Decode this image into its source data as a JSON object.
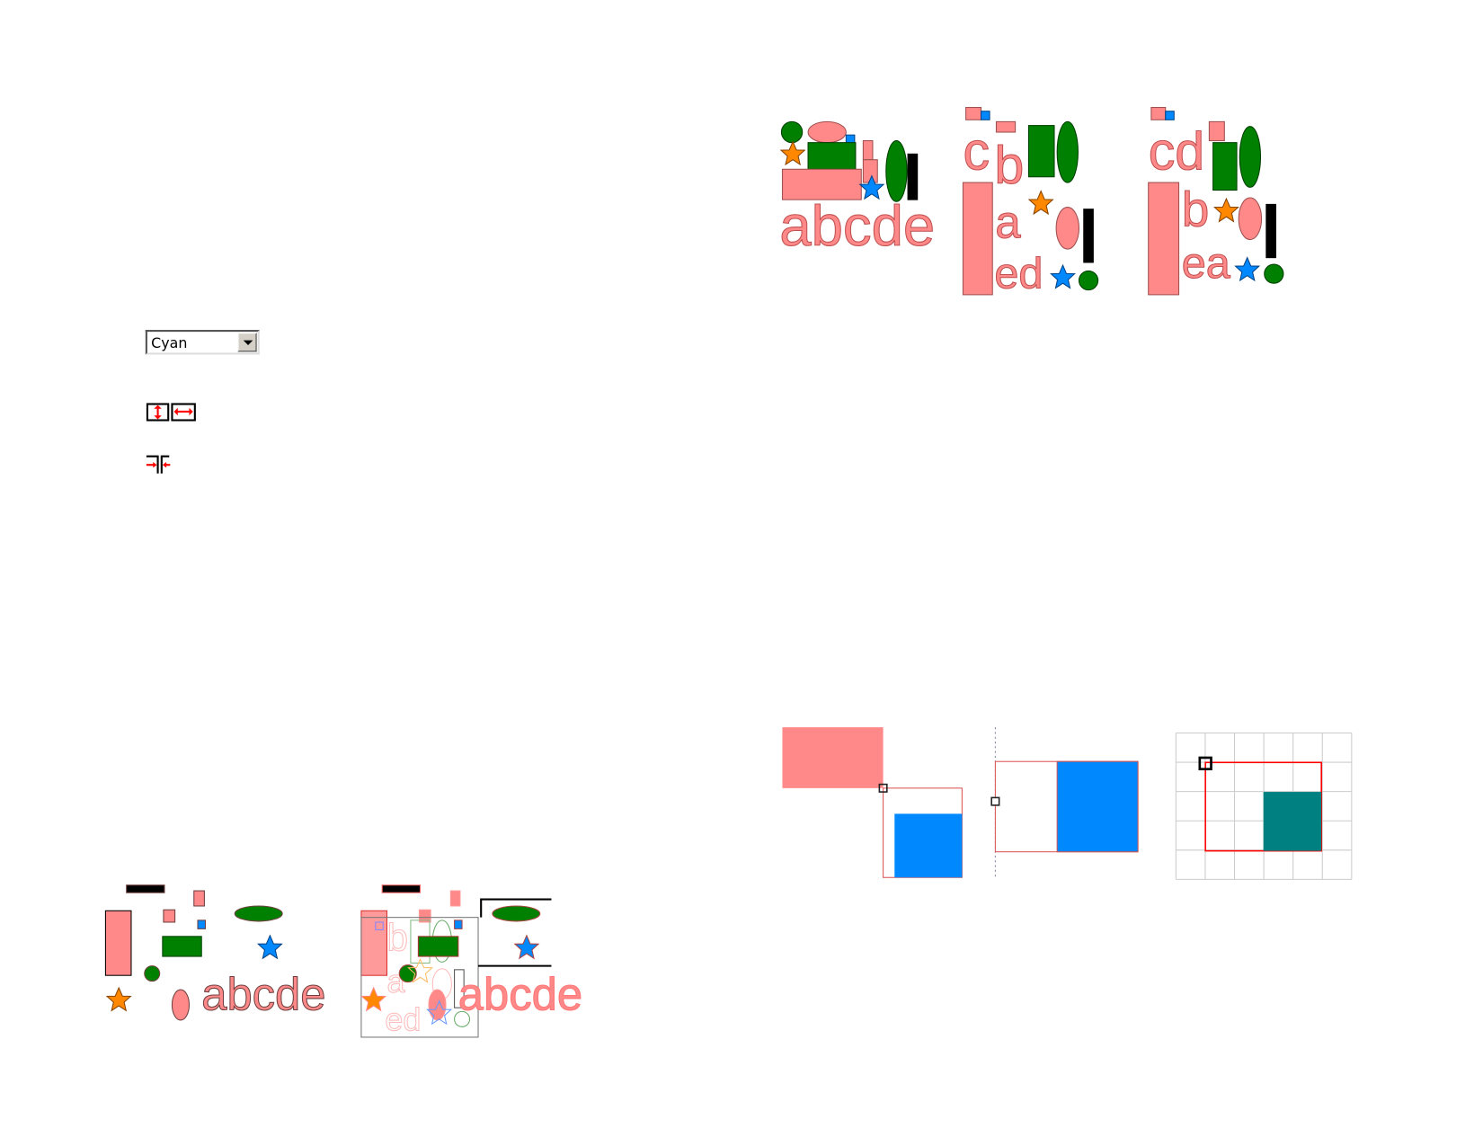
{
  "combo": {
    "selected": "Cyan",
    "icon": "chevron-down-icon"
  },
  "icons": [
    "flip-vertical-icon",
    "flip-horizontal-icon",
    "snap-together-icon"
  ],
  "figures": {
    "letters_row": "abcde",
    "stack2": {
      "l1": "c",
      "l2": "b",
      "l3": "a",
      "l4": "ed"
    },
    "stack3": {
      "l1": "cd",
      "l2": "b",
      "l3": "ea"
    },
    "ghost": {
      "l1": "b",
      "l2": "a",
      "l3": "ed"
    }
  },
  "colors": {
    "pink": "#ff8888",
    "green": "#008000",
    "blue": "#0088ff",
    "orange": "#ff8800",
    "teal": "#008080",
    "red": "#ff0000"
  }
}
